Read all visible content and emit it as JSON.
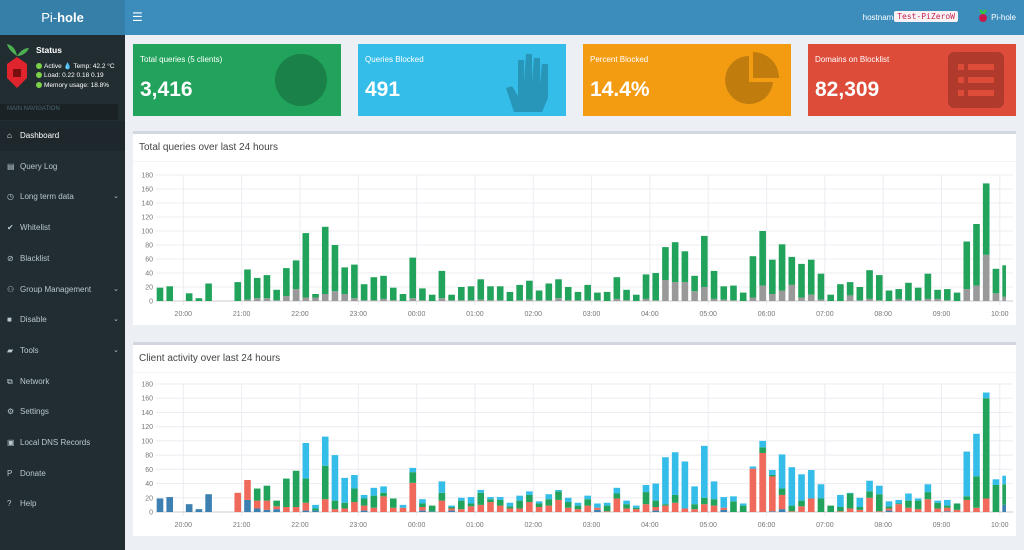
{
  "app": {
    "logo_prefix": "Pi-",
    "logo_suffix": "hole"
  },
  "header": {
    "menu_icon": "hamburger-icon",
    "hostname_label": "hostname:",
    "hostname": "Test-PiZeroW",
    "user": "Pi-hole"
  },
  "status": {
    "title": "Status",
    "active": "Active",
    "temp": "Temp: 42.2 °C",
    "load": "Load:  0.22  0.18  0.19",
    "memory": "Memory usage:  18.8%"
  },
  "sidebar": {
    "header": "MAIN NAVIGATION",
    "items": [
      {
        "label": "Dashboard",
        "icon": "home-icon",
        "active": true
      },
      {
        "label": "Query Log",
        "icon": "file-icon"
      },
      {
        "label": "Long term data",
        "icon": "clock-icon",
        "chevron": true
      },
      {
        "label": "Whitelist",
        "icon": "check-circle-icon"
      },
      {
        "label": "Blacklist",
        "icon": "ban-icon"
      },
      {
        "label": "Group Management",
        "icon": "users-icon",
        "chevron": true
      },
      {
        "label": "Disable",
        "icon": "stop-icon",
        "chevron": true
      },
      {
        "label": "Tools",
        "icon": "folder-icon",
        "chevron": true
      },
      {
        "label": "Network",
        "icon": "network-icon"
      },
      {
        "label": "Settings",
        "icon": "gears-icon"
      },
      {
        "label": "Local DNS Records",
        "icon": "address-book-icon"
      },
      {
        "label": "Donate",
        "icon": "paypal-icon"
      },
      {
        "label": "Help",
        "icon": "question-circle-icon"
      }
    ]
  },
  "stats": [
    {
      "label": "Total queries (5 clients)",
      "value": "3,416",
      "color": "#21a35b",
      "icon": "globe-icon"
    },
    {
      "label": "Queries Blocked",
      "value": "491",
      "color": "#33bde8",
      "icon": "hand-icon"
    },
    {
      "label": "Percent Blocked",
      "value": "14.4%",
      "color": "#f39c12",
      "icon": "pie-chart-icon"
    },
    {
      "label": "Domains on Blocklist",
      "value": "82,309",
      "color": "#dd4b39",
      "icon": "list-icon"
    }
  ],
  "chart_data": [
    {
      "type": "bar",
      "stacked": true,
      "title": "Total queries over last 24 hours",
      "ylim": [
        0,
        180
      ],
      "yticks": [
        0,
        20,
        40,
        60,
        80,
        100,
        120,
        140,
        160,
        180
      ],
      "xticks": [
        "20:00",
        "21:00",
        "22:00",
        "23:00",
        "00:00",
        "01:00",
        "02:00",
        "03:00",
        "04:00",
        "05:00",
        "06:00",
        "07:00",
        "08:00",
        "09:00",
        "10:00"
      ],
      "interval_minutes": 10,
      "grid": true,
      "series": [
        {
          "color": "#999999",
          "values": [
            0,
            0,
            null,
            0,
            0,
            0,
            null,
            null,
            0,
            2,
            4,
            4,
            1,
            7,
            17,
            5,
            5,
            10,
            14,
            10,
            4,
            1,
            1,
            3,
            1,
            0,
            4,
            1,
            0,
            4,
            1,
            1,
            1,
            2,
            1,
            1,
            0,
            1,
            2,
            1,
            1,
            4,
            1,
            1,
            1,
            1,
            0,
            3,
            1,
            0,
            3,
            1,
            30,
            27,
            27,
            14,
            20,
            3,
            2,
            1,
            0,
            5,
            22,
            10,
            15,
            23,
            5,
            9,
            2,
            0,
            0,
            8,
            1,
            3,
            1,
            0,
            3,
            1,
            1,
            3,
            3,
            1,
            0,
            17,
            22,
            66,
            11,
            6
          ]
        },
        {
          "color": "#21a35b",
          "values": [
            19,
            21,
            null,
            11,
            4,
            25,
            null,
            null,
            27,
            43,
            29,
            33,
            15,
            40,
            41,
            92,
            5,
            96,
            66,
            38,
            48,
            23,
            33,
            33,
            18,
            10,
            58,
            17,
            9,
            39,
            8,
            19,
            20,
            29,
            20,
            20,
            13,
            22,
            27,
            14,
            24,
            27,
            19,
            12,
            22,
            11,
            13,
            31,
            15,
            9,
            35,
            39,
            47,
            57,
            44,
            22,
            73,
            40,
            19,
            21,
            12,
            59,
            78,
            49,
            66,
            40,
            48,
            50,
            37,
            9,
            24,
            19,
            19,
            41,
            36,
            15,
            14,
            25,
            18,
            36,
            13,
            16,
            12,
            68,
            88,
            102,
            35,
            45
          ]
        }
      ]
    },
    {
      "type": "bar",
      "stacked": true,
      "title": "Client activity over last 24 hours",
      "ylim": [
        0,
        180
      ],
      "yticks": [
        0,
        20,
        40,
        60,
        80,
        100,
        120,
        140,
        160,
        180
      ],
      "xticks": [
        "20:00",
        "21:00",
        "22:00",
        "23:00",
        "00:00",
        "01:00",
        "02:00",
        "03:00",
        "04:00",
        "05:00",
        "06:00",
        "07:00",
        "08:00",
        "09:00",
        "10:00"
      ],
      "interval_minutes": 10,
      "grid": true,
      "series": [
        {
          "color": "#3c7fb1",
          "values": [
            19,
            21,
            null,
            11,
            4,
            25,
            null,
            null,
            0,
            17,
            5,
            3,
            4,
            0,
            0,
            2,
            2,
            0,
            0,
            0,
            0,
            2,
            0,
            0,
            0,
            0,
            0,
            2,
            1,
            0,
            2,
            0,
            0,
            0,
            0,
            0,
            0,
            0,
            0,
            0,
            0,
            0,
            0,
            0,
            0,
            3,
            0,
            0,
            0,
            0,
            0,
            2,
            0,
            0,
            0,
            0,
            0,
            0,
            3,
            0,
            0,
            0,
            0,
            1,
            4,
            0,
            0,
            0,
            0,
            0,
            0,
            0,
            0,
            0,
            0,
            2,
            0,
            0,
            0,
            0,
            0,
            1,
            0,
            0,
            0,
            0,
            0,
            10
          ]
        },
        {
          "color": "#f0695a",
          "values": [
            0,
            0,
            null,
            0,
            0,
            0,
            null,
            null,
            27,
            28,
            11,
            13,
            4,
            7,
            7,
            11,
            0,
            18,
            4,
            5,
            14,
            7,
            6,
            22,
            6,
            6,
            41,
            5,
            0,
            16,
            3,
            4,
            8,
            10,
            14,
            9,
            5,
            5,
            14,
            7,
            9,
            17,
            6,
            4,
            9,
            3,
            1,
            19,
            5,
            4,
            11,
            5,
            9,
            13,
            5,
            4,
            11,
            9,
            3,
            0,
            0,
            61,
            83,
            49,
            20,
            1,
            8,
            19,
            0,
            0,
            1,
            5,
            3,
            20,
            1,
            3,
            11,
            6,
            4,
            18,
            5,
            5,
            3,
            17,
            6,
            19,
            0,
            0
          ]
        },
        {
          "color": "#21a35b",
          "values": [
            0,
            0,
            null,
            0,
            0,
            0,
            null,
            null,
            0,
            0,
            17,
            21,
            8,
            40,
            51,
            34,
            3,
            47,
            12,
            8,
            19,
            10,
            17,
            5,
            13,
            0,
            15,
            5,
            8,
            11,
            2,
            12,
            4,
            17,
            4,
            8,
            3,
            11,
            10,
            5,
            9,
            12,
            8,
            5,
            9,
            0,
            8,
            7,
            6,
            2,
            17,
            9,
            2,
            11,
            0,
            7,
            9,
            9,
            0,
            15,
            9,
            0,
            8,
            2,
            9,
            8,
            8,
            0,
            19,
            9,
            6,
            21,
            4,
            9,
            24,
            3,
            1,
            10,
            12,
            10,
            8,
            3,
            9,
            5,
            44,
            141,
            38,
            29
          ]
        },
        {
          "color": "#33bde8",
          "values": [
            0,
            0,
            null,
            0,
            0,
            0,
            null,
            null,
            0,
            0,
            0,
            0,
            0,
            0,
            0,
            50,
            5,
            41,
            64,
            35,
            19,
            5,
            11,
            9,
            0,
            4,
            6,
            6,
            0,
            16,
            2,
            4,
            9,
            4,
            3,
            4,
            5,
            7,
            5,
            3,
            7,
            2,
            6,
            4,
            5,
            6,
            4,
            8,
            5,
            3,
            10,
            24,
            66,
            60,
            66,
            25,
            73,
            25,
            15,
            7,
            3,
            3,
            9,
            7,
            48,
            54,
            37,
            40,
            20,
            0,
            17,
            1,
            13,
            15,
            12,
            7,
            5,
            10,
            3,
            11,
            3,
            8,
            0,
            63,
            60,
            8,
            8,
            12
          ]
        }
      ]
    }
  ]
}
